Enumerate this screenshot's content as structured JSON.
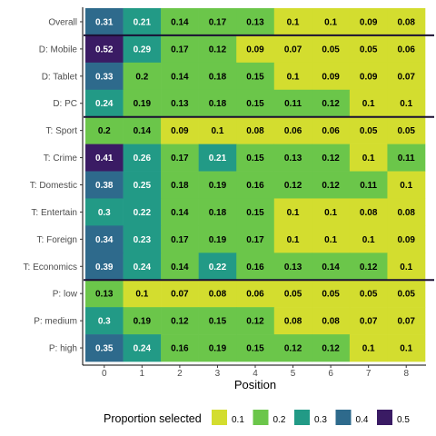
{
  "chart_data": {
    "type": "heatmap",
    "title": "",
    "xlabel": "Position",
    "ylabel": "",
    "x": [
      "0",
      "1",
      "2",
      "3",
      "4",
      "5",
      "6",
      "7",
      "8"
    ],
    "rows": [
      "Overall",
      "D: Mobile",
      "D: Tablet",
      "D: PC",
      "T: Sport",
      "T: Crime",
      "T: Domestic",
      "T: Entertain",
      "T: Foreign",
      "T: Economics",
      "P: low",
      "P: medium",
      "P: high"
    ],
    "values": [
      [
        0.31,
        0.21,
        0.14,
        0.17,
        0.13,
        0.1,
        0.1,
        0.09,
        0.08
      ],
      [
        0.52,
        0.29,
        0.17,
        0.12,
        0.09,
        0.07,
        0.05,
        0.05,
        0.06
      ],
      [
        0.33,
        0.2,
        0.14,
        0.18,
        0.15,
        0.1,
        0.09,
        0.09,
        0.07
      ],
      [
        0.24,
        0.19,
        0.13,
        0.18,
        0.15,
        0.11,
        0.12,
        0.1,
        0.1
      ],
      [
        0.2,
        0.14,
        0.09,
        0.1,
        0.08,
        0.06,
        0.06,
        0.05,
        0.05
      ],
      [
        0.41,
        0.26,
        0.17,
        0.21,
        0.15,
        0.13,
        0.12,
        0.1,
        0.11
      ],
      [
        0.38,
        0.25,
        0.18,
        0.19,
        0.16,
        0.12,
        0.12,
        0.11,
        0.1
      ],
      [
        0.3,
        0.22,
        0.14,
        0.18,
        0.15,
        0.1,
        0.1,
        0.08,
        0.08
      ],
      [
        0.34,
        0.23,
        0.17,
        0.19,
        0.17,
        0.1,
        0.1,
        0.1,
        0.09
      ],
      [
        0.39,
        0.24,
        0.14,
        0.22,
        0.16,
        0.13,
        0.14,
        0.12,
        0.1
      ],
      [
        0.13,
        0.1,
        0.07,
        0.08,
        0.06,
        0.05,
        0.05,
        0.05,
        0.05
      ],
      [
        0.3,
        0.19,
        0.12,
        0.15,
        0.12,
        0.08,
        0.08,
        0.07,
        0.07
      ],
      [
        0.35,
        0.24,
        0.16,
        0.19,
        0.15,
        0.12,
        0.12,
        0.1,
        0.1
      ]
    ],
    "group_separators_after_rows": [
      "Overall",
      "D: PC",
      "T: Economics"
    ],
    "legend": {
      "title": "Proportion selected",
      "placement": "bottom",
      "labels": [
        "0.1",
        "0.2",
        "0.3",
        "0.4",
        "0.5"
      ]
    },
    "color_bins": [
      {
        "max": 0.1,
        "color": "#d3dd2f"
      },
      {
        "max": 0.2,
        "color": "#6bc64a"
      },
      {
        "max": 0.3,
        "color": "#229a86"
      },
      {
        "max": 0.4,
        "color": "#2e6a8c"
      },
      {
        "max": 1.0,
        "color": "#3a1b64"
      }
    ],
    "colors": {
      "separator": "#1a0f33",
      "axis": "#000000",
      "label_dark": "#000000",
      "label_light": "#ffffff"
    },
    "grid": false
  }
}
